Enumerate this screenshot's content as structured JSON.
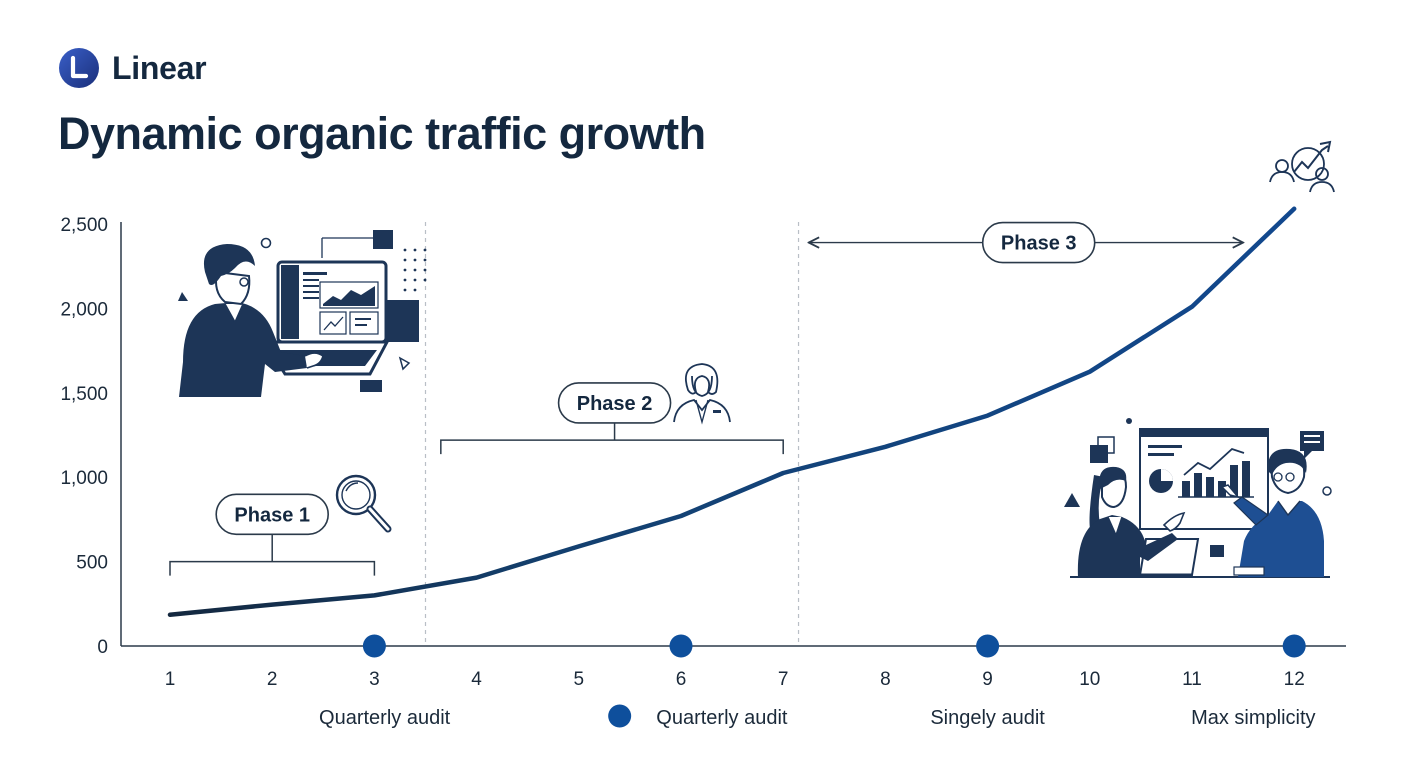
{
  "brand": {
    "name": "Linear"
  },
  "colors": {
    "line": "#12488e",
    "line_start": "#14283f",
    "marker": "#0e4f9c",
    "navy": "#1d3557",
    "axis": "#2b3a4a",
    "bracket": "#2b3a4a"
  },
  "chart_data": {
    "type": "line",
    "title": "Dynamic organic traffic growth",
    "xlabel": "",
    "ylabel": "",
    "x": [
      1,
      2,
      3,
      4,
      5,
      6,
      7,
      8,
      9,
      10,
      11,
      12
    ],
    "y_ticks": [
      "0",
      "500",
      "1,000",
      "1,500",
      "2,000",
      "2,500"
    ],
    "ylim": [
      0,
      2500
    ],
    "grid": false,
    "series": [
      {
        "values": [
          185,
          245,
          300,
          405,
          590,
          770,
          1025,
          1180,
          1365,
          1625,
          2010,
          2590
        ]
      }
    ],
    "audit_markers": [
      3,
      6,
      9,
      12
    ],
    "audit_labels": [
      {
        "text": "Quarterly audit",
        "x": 3.1
      },
      {
        "text": "Quarterly audit",
        "x": 6.4
      },
      {
        "text": "Singely audit",
        "x": 9.0
      },
      {
        "text": "Max simplicity",
        "x": 11.6
      }
    ],
    "legend_dot_x": 5.4,
    "phases": [
      {
        "label": "Phase 1",
        "start": 1,
        "end": 3,
        "bracket_y": 500,
        "label_x": 2.0,
        "label_y": 780
      },
      {
        "label": "Phase 2",
        "start": 3.65,
        "end": 7,
        "bracket_y": 1220,
        "label_x": 5.35,
        "label_y": 1440
      },
      {
        "label": "Phase 3",
        "start": 7.25,
        "end": 11.5,
        "bracket_y": 2390,
        "label_x": 9.5,
        "label_y": 2390
      }
    ],
    "phase_dividers": [
      3.5,
      7.15
    ]
  }
}
